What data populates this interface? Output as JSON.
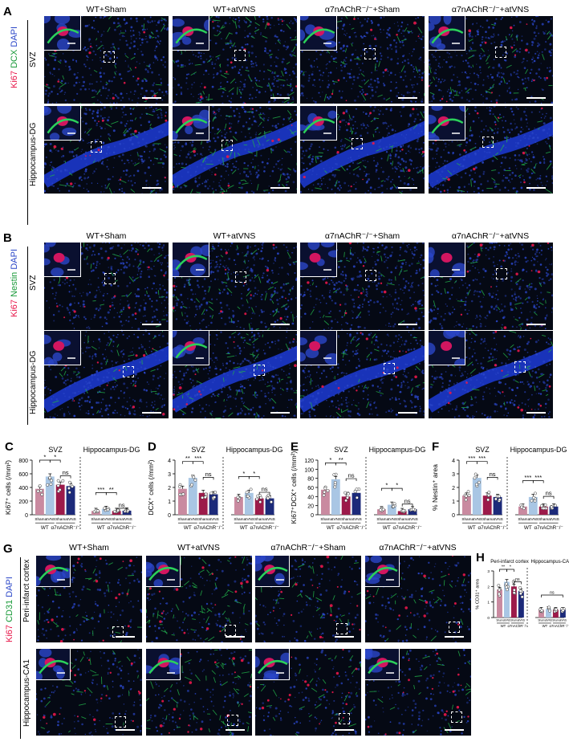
{
  "panels": {
    "A": {
      "letter": "A",
      "stain": [
        "Ki67",
        "DCX",
        "DAPI"
      ],
      "columns": [
        "WT+Sham",
        "WT+atVNS",
        "α7nAChR⁻/⁻+Sham",
        "α7nAChR⁻/⁻+atVNS"
      ],
      "rows": [
        "SVZ",
        "Hippocampus-DG"
      ]
    },
    "B": {
      "letter": "B",
      "stain": [
        "Ki67",
        "Nestin",
        "DAPI"
      ],
      "columns": [
        "WT+Sham",
        "WT+atVNS",
        "α7nAChR⁻/⁻+Sham",
        "α7nAChR⁻/⁻+atVNS"
      ],
      "rows": [
        "SVZ",
        "Hippocampus-DG"
      ]
    },
    "G": {
      "letter": "G",
      "stain": [
        "Ki67",
        "CD31",
        "DAPI"
      ],
      "columns": [
        "WT+Sham",
        "WT+atVNS",
        "α7nAChR⁻/⁻+Sham",
        "α7nAChR⁻/⁻+atVNS"
      ],
      "rows": [
        "Peri-infarct cortex",
        "Hippocampus-CA1"
      ]
    }
  },
  "colors": {
    "sham_wt": "#c98aa0",
    "atvns_wt": "#a9c6e4",
    "sham_ko": "#9c1a4a",
    "atvns_ko": "#1c2a7a",
    "nuclei": "#2a46c8",
    "ki67": "#e8174a",
    "marker": "#1a9a3a"
  },
  "chart_data": [
    {
      "letter": "C",
      "type": "bar",
      "ylabel": "Ki67⁺ cells (/mm²)",
      "ylim": [
        0,
        800
      ],
      "yticks": [
        0,
        200,
        400,
        600,
        800
      ],
      "regions": [
        "SVZ",
        "Hippocampus-DG"
      ],
      "groups": [
        "WT",
        "α7nAChR⁻/⁻"
      ],
      "categories": [
        "Sham",
        "atVNS",
        "Sham",
        "atVNS"
      ],
      "series": [
        {
          "values": [
            380,
            560,
            440,
            420
          ]
        },
        {
          "values": [
            55,
            85,
            55,
            60
          ]
        }
      ],
      "sig": [
        [
          [
            "*",
            0,
            1
          ],
          [
            "*",
            1,
            2
          ],
          [
            "ns",
            2,
            3
          ]
        ],
        [
          [
            "***",
            0,
            1
          ],
          [
            "**",
            1,
            2
          ],
          [
            "ns",
            2,
            3
          ]
        ]
      ]
    },
    {
      "letter": "D",
      "type": "bar",
      "ylabel": "DCX⁺ cells (/mm²)",
      "ylim": [
        0,
        4
      ],
      "yticks": [
        0,
        1,
        2,
        3,
        4
      ],
      "regions": [
        "SVZ",
        "Hippocampus-DG"
      ],
      "groups": [
        "WT",
        "α7nAChR⁻/⁻"
      ],
      "categories": [
        "Sham",
        "atVNS",
        "Sham",
        "atVNS"
      ],
      "series": [
        {
          "values": [
            1.9,
            2.7,
            1.6,
            1.5
          ]
        },
        {
          "values": [
            1.3,
            1.6,
            1.2,
            1.2
          ]
        }
      ],
      "sig": [
        [
          [
            "**",
            0,
            1
          ],
          [
            "***",
            1,
            2
          ],
          [
            "ns",
            2,
            3
          ]
        ],
        [
          [
            "*",
            0,
            1
          ],
          [
            "*",
            1,
            2
          ],
          [
            "ns",
            2,
            3
          ]
        ]
      ]
    },
    {
      "letter": "E",
      "type": "bar",
      "ylabel": "Ki67⁺DCX⁺ cells (/mm²)",
      "ylim": [
        0,
        120
      ],
      "yticks": [
        0,
        20,
        40,
        60,
        80,
        100,
        120
      ],
      "regions": [
        "SVZ",
        "Hippocampus-DG"
      ],
      "groups": [
        "WT",
        "α7nAChR⁻/⁻"
      ],
      "categories": [
        "Sham",
        "atVNS",
        "Sham",
        "atVNS"
      ],
      "series": [
        {
          "values": [
            55,
            78,
            40,
            48
          ]
        },
        {
          "values": [
            12,
            22,
            8,
            12
          ]
        }
      ],
      "sig": [
        [
          [
            "*",
            0,
            1
          ],
          [
            "**",
            1,
            2
          ],
          [
            "ns",
            2,
            3
          ]
        ],
        [
          [
            "*",
            0,
            1
          ],
          [
            "*",
            1,
            2
          ],
          [
            "ns",
            2,
            3
          ]
        ]
      ]
    },
    {
      "letter": "F",
      "type": "bar",
      "ylabel": "% Nestin⁺ area",
      "ylim": [
        0,
        4
      ],
      "yticks": [
        0,
        1,
        2,
        3,
        4
      ],
      "regions": [
        "SVZ",
        "Hippocampus-DG"
      ],
      "groups": [
        "WT",
        "α7nAChR⁻/⁻"
      ],
      "categories": [
        "Sham",
        "atVNS",
        "Sham",
        "atVNS"
      ],
      "series": [
        {
          "values": [
            1.4,
            2.7,
            1.4,
            1.3
          ]
        },
        {
          "values": [
            0.6,
            1.3,
            0.6,
            0.6
          ]
        }
      ],
      "sig": [
        [
          [
            "***",
            0,
            1
          ],
          [
            "***",
            1,
            2
          ],
          [
            "ns",
            2,
            3
          ]
        ],
        [
          [
            "***",
            0,
            1
          ],
          [
            "***",
            1,
            2
          ],
          [
            "ns",
            2,
            3
          ]
        ]
      ]
    },
    {
      "letter": "H",
      "type": "bar",
      "ylabel": "% CD31⁺ area",
      "ylim": [
        0,
        3
      ],
      "yticks": [
        0,
        1,
        2,
        3
      ],
      "regions": [
        "Peri-infarct cortex",
        "Hippocampus-CA1"
      ],
      "groups": [
        "WT",
        "α7nAChR⁻/⁻"
      ],
      "categories": [
        "Sham",
        "atVNS",
        "Sham",
        "atVNS"
      ],
      "series": [
        {
          "values": [
            1.8,
            2.3,
            2.0,
            1.7
          ]
        },
        {
          "values": [
            0.5,
            0.55,
            0.5,
            0.5
          ]
        }
      ],
      "sig": [
        [
          [
            "**",
            0,
            1
          ],
          [
            "*",
            1,
            2
          ],
          [
            "ns",
            2,
            3
          ]
        ],
        [
          [
            "ns",
            0,
            3
          ]
        ]
      ]
    }
  ]
}
